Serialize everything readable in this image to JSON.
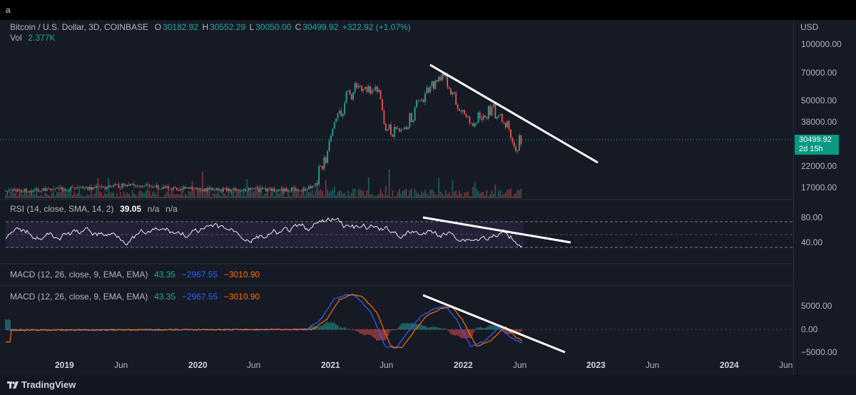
{
  "topbar": {
    "label": "a"
  },
  "symbol": {
    "title": "Bitcoin / U.S. Dollar, 3D, COINBASE",
    "o_label": "O",
    "o_value": "30182.92",
    "h_label": "H",
    "h_value": "30552.29",
    "l_label": "L",
    "l_value": "30050.00",
    "c_label": "C",
    "c_value": "30499.92",
    "change": "+322.92 (+1.07%)",
    "vol_label": "Vol",
    "vol_value": "2.377K"
  },
  "price_axis": {
    "currency": "USD",
    "ticks": [
      "100000.00",
      "70000.00",
      "50000.00",
      "38000.00",
      "22000.00",
      "17000.00"
    ],
    "last_price": "30499.92",
    "countdown": "2d 15h"
  },
  "rsi": {
    "legend": "RSI (14, close, SMA, 14, 2)",
    "value": "39.05",
    "na1": "n/a",
    "na2": "n/a",
    "ticks": [
      "80.00",
      "40.00"
    ]
  },
  "macd_top": {
    "legend": "MACD (12, 26, close, 9, EMA, EMA)",
    "hist": "43.35",
    "macd": "−2967.55",
    "signal": "−3010.90"
  },
  "macd": {
    "legend": "MACD (12, 26, close, 9, EMA, EMA)",
    "hist": "43.35",
    "macd": "−2967.55",
    "signal": "−3010.90",
    "ticks": [
      "5000.00",
      "0.00",
      "−5000.00"
    ]
  },
  "time_axis": [
    "2019",
    "Jun",
    "2020",
    "Jun",
    "2021",
    "Jun",
    "2022",
    "Jun",
    "2023",
    "Jun",
    "2024",
    "Jun"
  ],
  "footer": {
    "brand": "TradingView"
  },
  "colors": {
    "up": "#26a69a",
    "down": "#ef5350",
    "macd": "#2962ff",
    "signal": "#ff6d00",
    "rsi": "#ffffff",
    "trendline": "#ffffff"
  }
}
